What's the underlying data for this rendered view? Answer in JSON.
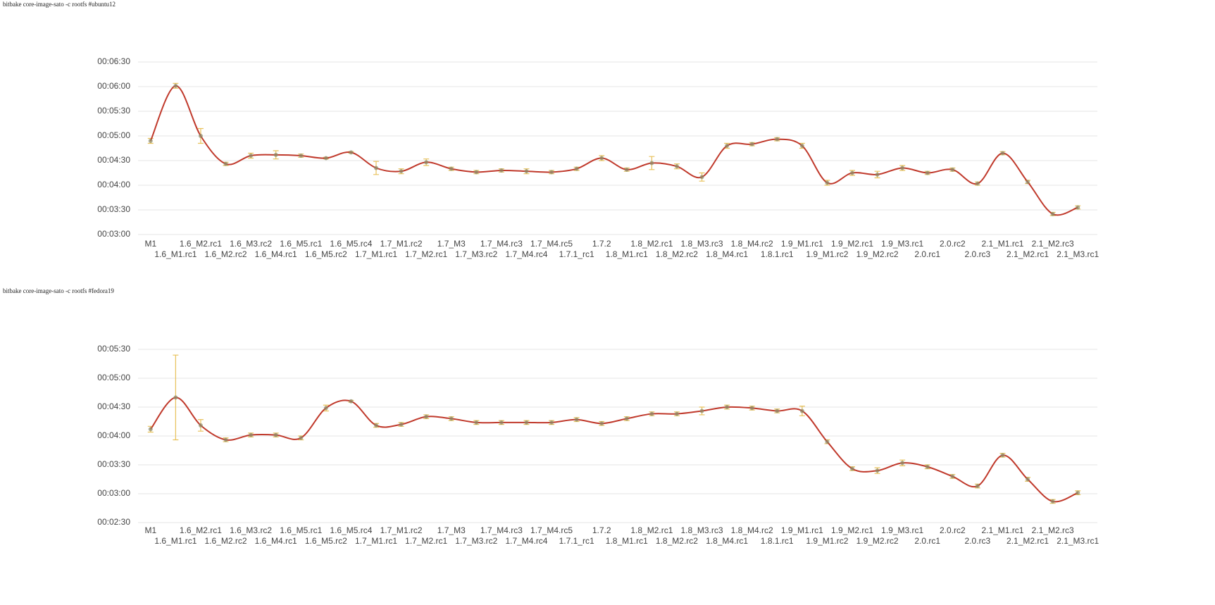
{
  "chart_data": [
    {
      "type": "line",
      "title": "bitbake core-image-sato -c rootfs #ubuntu12",
      "categories": [
        "M1",
        "1.6_M1.rc1",
        "1.6_M2.rc1",
        "1.6_M2.rc2",
        "1.6_M3.rc2",
        "1.6_M4.rc1",
        "1.6_M5.rc1",
        "1.6_M5.rc2",
        "1.6_M5.rc4",
        "1.7_M1.rc1",
        "1.7_M1.rc2",
        "1.7_M2.rc1",
        "1.7_M3",
        "1.7_M3.rc2",
        "1.7_M4.rc3",
        "1.7_M4.rc4",
        "1.7_M4.rc5",
        "1.7.1_rc1",
        "1.7.2",
        "1.8_M1.rc1",
        "1.8_M2.rc1",
        "1.8_M2.rc2",
        "1.8_M3.rc3",
        "1.8_M4.rc1",
        "1.8_M4.rc2",
        "1.8.1.rc1",
        "1.9_M1.rc1",
        "1.9_M1.rc2",
        "1.9_M2.rc1",
        "1.9_M2.rc2",
        "1.9_M3.rc1",
        "2.0.rc1",
        "2.0.rc2",
        "2.0.rc3",
        "2.1_M1.rc1",
        "2.1_M2.rc1",
        "2.1_M2.rc3",
        "2.1_M3.rc1"
      ],
      "values": [
        294,
        361,
        300,
        266,
        276,
        277,
        276,
        273,
        280,
        261,
        257,
        268,
        260,
        256,
        258,
        257,
        256,
        260,
        273,
        259,
        267,
        263,
        250,
        288,
        290,
        296,
        288,
        243,
        255,
        253,
        261,
        255,
        259,
        242,
        279,
        244,
        205,
        213
      ],
      "errors": [
        3,
        3,
        9,
        2,
        3,
        5,
        2,
        1,
        1,
        8,
        3,
        4,
        2,
        2,
        2,
        3,
        2,
        2,
        3,
        2,
        8,
        3,
        5,
        3,
        2,
        2,
        3,
        3,
        3,
        4,
        3,
        2,
        2,
        2,
        2,
        2,
        2,
        2
      ],
      "color": "#c0392b",
      "error_color": "#e8c15a",
      "ylim": [
        180,
        390
      ],
      "yticks": [
        {
          "value": 180,
          "label": "00:03:00"
        },
        {
          "value": 210,
          "label": "00:03:30"
        },
        {
          "value": 240,
          "label": "00:04:00"
        },
        {
          "value": 270,
          "label": "00:04:30"
        },
        {
          "value": 300,
          "label": "00:05:00"
        },
        {
          "value": 330,
          "label": "00:05:30"
        },
        {
          "value": 360,
          "label": "00:06:00"
        },
        {
          "value": 390,
          "label": "00:06:30"
        }
      ],
      "grid": true
    },
    {
      "type": "line",
      "title": "bitbake core-image-sato -c rootfs #fedora19",
      "categories": [
        "M1",
        "1.6_M1.rc1",
        "1.6_M2.rc1",
        "1.6_M2.rc2",
        "1.6_M3.rc2",
        "1.6_M4.rc1",
        "1.6_M5.rc1",
        "1.6_M5.rc2",
        "1.6_M5.rc4",
        "1.7_M1.rc1",
        "1.7_M1.rc2",
        "1.7_M2.rc1",
        "1.7_M3",
        "1.7_M3.rc2",
        "1.7_M4.rc3",
        "1.7_M4.rc4",
        "1.7_M4.rc5",
        "1.7.1_rc1",
        "1.7.2",
        "1.8_M1.rc1",
        "1.8_M2.rc1",
        "1.8_M2.rc2",
        "1.8_M3.rc3",
        "1.8_M4.rc1",
        "1.8_M4.rc2",
        "1.8.1.rc1",
        "1.9_M1.rc1",
        "1.9_M1.rc2",
        "1.9_M2.rc1",
        "1.9_M2.rc2",
        "1.9_M3.rc1",
        "2.0.rc1",
        "2.0.rc2",
        "2.0.rc3",
        "2.1_M1.rc1",
        "2.1_M2.rc1",
        "2.1_M2.rc3",
        "2.1_M3.rc1"
      ],
      "values": [
        247,
        280,
        251,
        236,
        241,
        241,
        238,
        269,
        276,
        251,
        252,
        260,
        258,
        254,
        254,
        254,
        254,
        257,
        253,
        258,
        263,
        263,
        266,
        270,
        269,
        266,
        266,
        234,
        206,
        204,
        212,
        208,
        198,
        188,
        220,
        195,
        172,
        181
      ],
      "errors": [
        3,
        44,
        6,
        2,
        2,
        2,
        2,
        3,
        1,
        2,
        2,
        2,
        2,
        2,
        2,
        2,
        2,
        2,
        2,
        2,
        2,
        2,
        4,
        2,
        2,
        2,
        5,
        2,
        2,
        3,
        3,
        2,
        2,
        2,
        2,
        2,
        2,
        2
      ],
      "color": "#c0392b",
      "error_color": "#e8c15a",
      "ylim": [
        150,
        330
      ],
      "yticks": [
        {
          "value": 150,
          "label": "00:02:30"
        },
        {
          "value": 180,
          "label": "00:03:00"
        },
        {
          "value": 210,
          "label": "00:03:30"
        },
        {
          "value": 240,
          "label": "00:04:00"
        },
        {
          "value": 270,
          "label": "00:04:30"
        },
        {
          "value": 300,
          "label": "00:05:00"
        },
        {
          "value": 330,
          "label": "00:05:30"
        }
      ],
      "grid": true
    }
  ]
}
